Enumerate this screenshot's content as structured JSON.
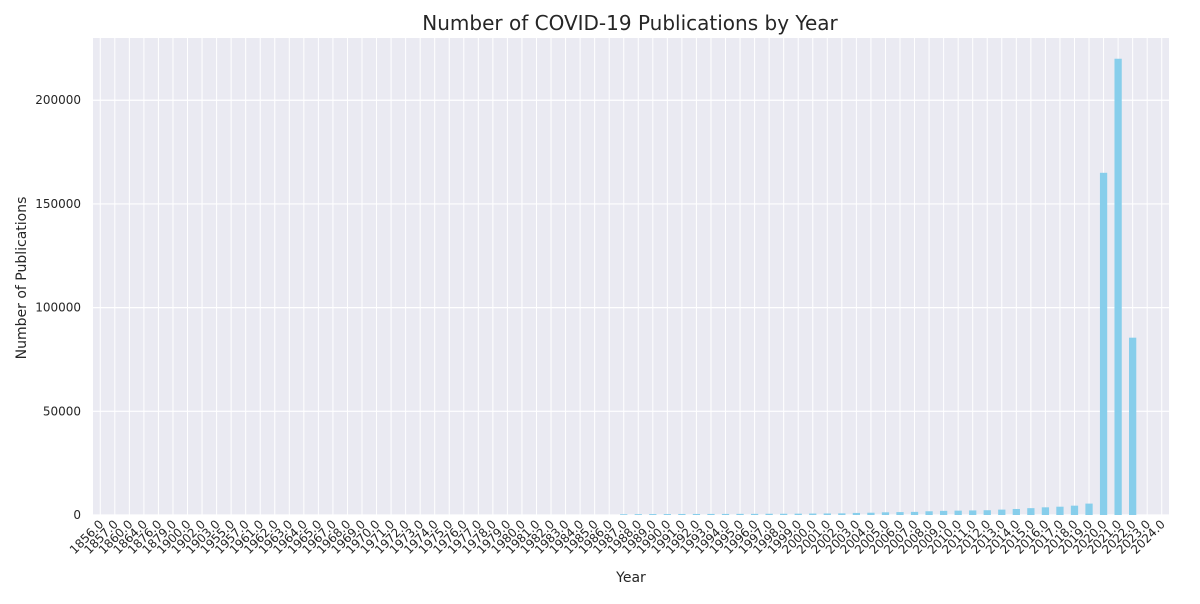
{
  "chart_data": {
    "type": "bar",
    "title": "Number of COVID-19 Publications by Year",
    "xlabel": "Year",
    "ylabel": "Number of Publications",
    "ylim": [
      0,
      230000
    ],
    "yticks": [
      0,
      50000,
      100000,
      150000,
      200000
    ],
    "grid": true,
    "bar_color": "#87CEEB",
    "background_color": "#EAEAF2",
    "grid_color": "#FFFFFF",
    "categories": [
      "1856.0",
      "1857.0",
      "1860.0",
      "1864.0",
      "1876.0",
      "1879.0",
      "1900.0",
      "1902.0",
      "1903.0",
      "1955.0",
      "1957.0",
      "1961.0",
      "1962.0",
      "1963.0",
      "1964.0",
      "1965.0",
      "1967.0",
      "1968.0",
      "1969.0",
      "1970.0",
      "1971.0",
      "1972.0",
      "1973.0",
      "1974.0",
      "1975.0",
      "1976.0",
      "1977.0",
      "1978.0",
      "1979.0",
      "1980.0",
      "1981.0",
      "1982.0",
      "1983.0",
      "1984.0",
      "1985.0",
      "1986.0",
      "1987.0",
      "1988.0",
      "1989.0",
      "1990.0",
      "1991.0",
      "1992.0",
      "1993.0",
      "1994.0",
      "1995.0",
      "1996.0",
      "1997.0",
      "1998.0",
      "1999.0",
      "2000.0",
      "2001.0",
      "2002.0",
      "2003.0",
      "2004.0",
      "2005.0",
      "2006.0",
      "2007.0",
      "2008.0",
      "2009.0",
      "2010.0",
      "2011.0",
      "2012.0",
      "2013.0",
      "2014.0",
      "2015.0",
      "2016.0",
      "2017.0",
      "2018.0",
      "2019.0",
      "2020.0",
      "2021.0",
      "2022.0",
      "2023.0",
      "2024.0"
    ],
    "values": [
      1,
      1,
      1,
      1,
      1,
      1,
      1,
      1,
      1,
      1,
      1,
      1,
      1,
      1,
      1,
      1,
      2,
      2,
      2,
      3,
      3,
      3,
      3,
      3,
      3,
      3,
      3,
      3,
      3,
      3,
      3,
      3,
      3,
      3,
      3,
      3,
      350,
      400,
      450,
      450,
      500,
      500,
      520,
      520,
      550,
      550,
      600,
      600,
      650,
      700,
      750,
      800,
      1000,
      1100,
      1300,
      1400,
      1500,
      1800,
      2000,
      2100,
      2200,
      2300,
      2600,
      2900,
      3300,
      3700,
      4000,
      4500,
      5500,
      165000,
      220000,
      85500,
      1,
      1
    ]
  }
}
